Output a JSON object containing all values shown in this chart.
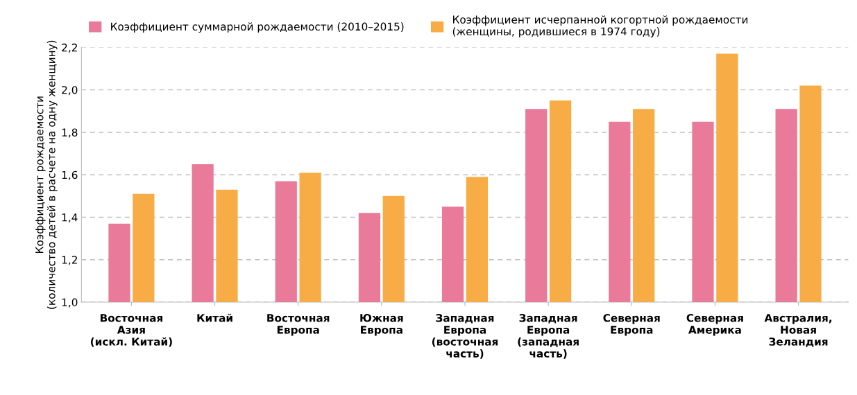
{
  "chart_data": {
    "type": "bar",
    "ylabel": "Коэффициент рождаемости\n(количество детей в расчете на одну женщину)",
    "categories": [
      "Восточная\nАзия\n(искл. Китай)",
      "Китай",
      "Восточная\nЕвропа",
      "Южная\nЕвропа",
      "Западная\nЕвропа\n(восточная\nчасть)",
      "Западная\nЕвропа\n(западная\nчасть)",
      "Северная\nЕвропа",
      "Северная\nАмерика",
      "Австралия,\nНовая\nЗеландия"
    ],
    "series": [
      {
        "name": "Коэффициент суммарной рождаемости (2010–2015)",
        "color": "#e97a9a",
        "values": [
          1.37,
          1.65,
          1.57,
          1.42,
          1.45,
          1.91,
          1.85,
          1.85,
          1.91
        ]
      },
      {
        "name": "Коэффициент исчерпанной когортной рождаемости\n(женщины, родившиеся в 1974 году)",
        "color": "#f7ac45",
        "values": [
          1.51,
          1.53,
          1.61,
          1.5,
          1.59,
          1.95,
          1.91,
          2.17,
          2.02
        ]
      }
    ],
    "ylim": [
      1.0,
      2.2
    ],
    "yticks": [
      {
        "value": 1.0,
        "label": "1,0"
      },
      {
        "value": 1.2,
        "label": "1,2"
      },
      {
        "value": 1.4,
        "label": "1,4"
      },
      {
        "value": 1.6,
        "label": "1,6"
      },
      {
        "value": 1.8,
        "label": "1,8"
      },
      {
        "value": 2.0,
        "label": "2,0"
      },
      {
        "value": 2.2,
        "label": "2,2"
      }
    ],
    "grid": "y",
    "legend": "top left"
  }
}
